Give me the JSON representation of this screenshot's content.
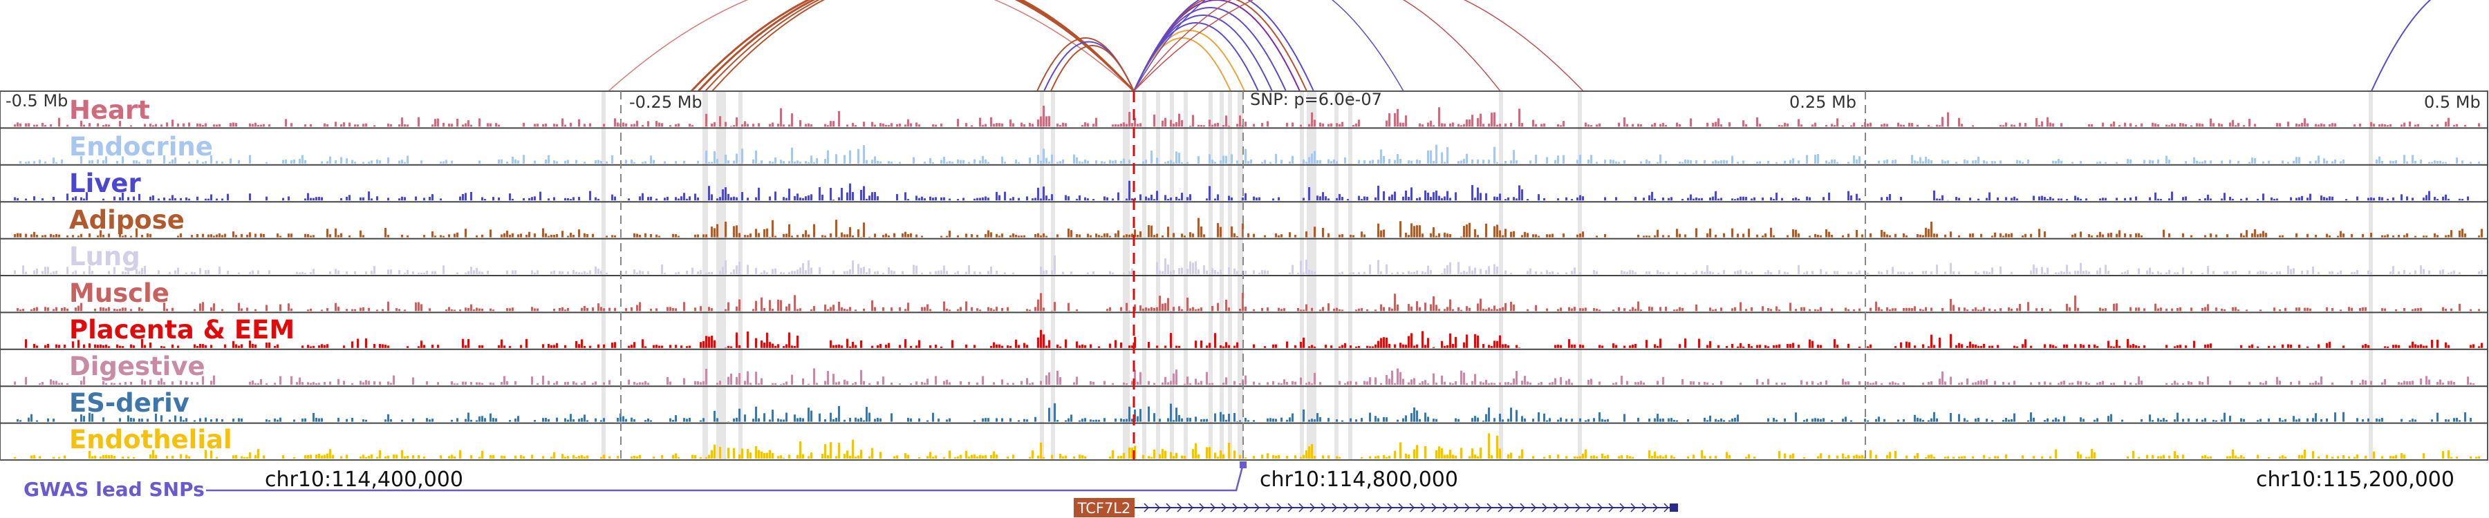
{
  "ruler": {
    "labels": [
      "-0.5 Mb",
      "-0.25 Mb",
      "0.25 Mb",
      "0.5 Mb"
    ],
    "snp_label": "SNP: p=6.0e-07"
  },
  "tracks": [
    {
      "label": "Heart",
      "color": "#d06b7e"
    },
    {
      "label": "Endocrine",
      "color": "#a7c6f0"
    },
    {
      "label": "Liver",
      "color": "#4a47d0"
    },
    {
      "label": "Adipose",
      "color": "#b15a2e"
    },
    {
      "label": "Lung",
      "color": "#d2cfe6"
    },
    {
      "label": "Muscle",
      "color": "#c86260"
    },
    {
      "label": "Placenta & EEM",
      "color": "#e00a0a"
    },
    {
      "label": "Digestive",
      "color": "#c98aa6"
    },
    {
      "label": "ES-deriv",
      "color": "#3e76ac"
    },
    {
      "label": "Endothelial",
      "color": "#f5c10d"
    }
  ],
  "coordinates": [
    "chr10:114,400,000",
    "chr10:114,800,000",
    "chr10:115,200,000"
  ],
  "gwas": {
    "label": "GWAS lead SNPs",
    "color": "#6a5acd"
  },
  "gene": {
    "name": "TCF7L2",
    "color": "#b5512c",
    "strand_color": "#2a2a8c"
  }
}
